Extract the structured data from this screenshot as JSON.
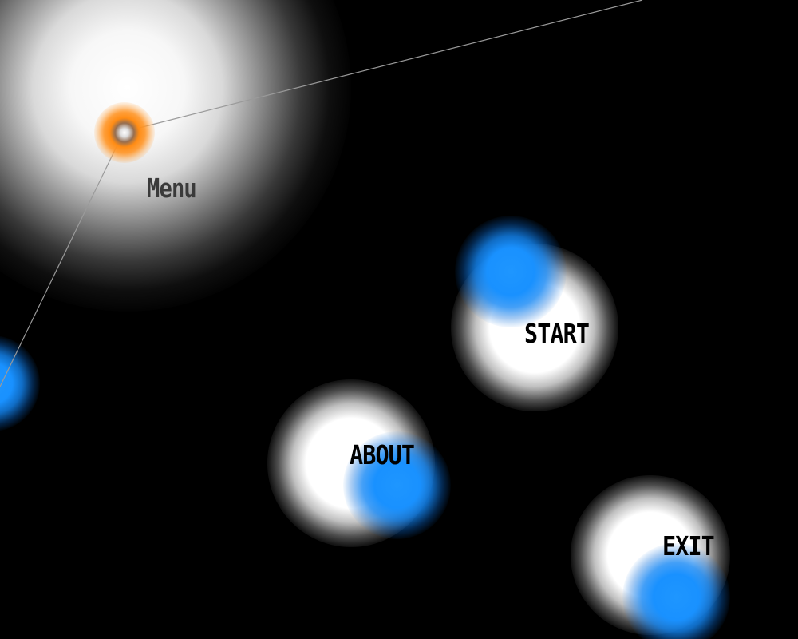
{
  "menu": {
    "title": "Menu"
  },
  "buttons": {
    "start": "START",
    "about": "ABOUT",
    "exit": "EXIT"
  },
  "colors": {
    "background": "#000000",
    "node_orange": "#ff8c14",
    "node_blue": "#1e96ff",
    "glow_white": "#ffffff",
    "connector_line": "#9a9a9a",
    "menu_label": "#3a3a3a",
    "button_label": "#000000"
  }
}
